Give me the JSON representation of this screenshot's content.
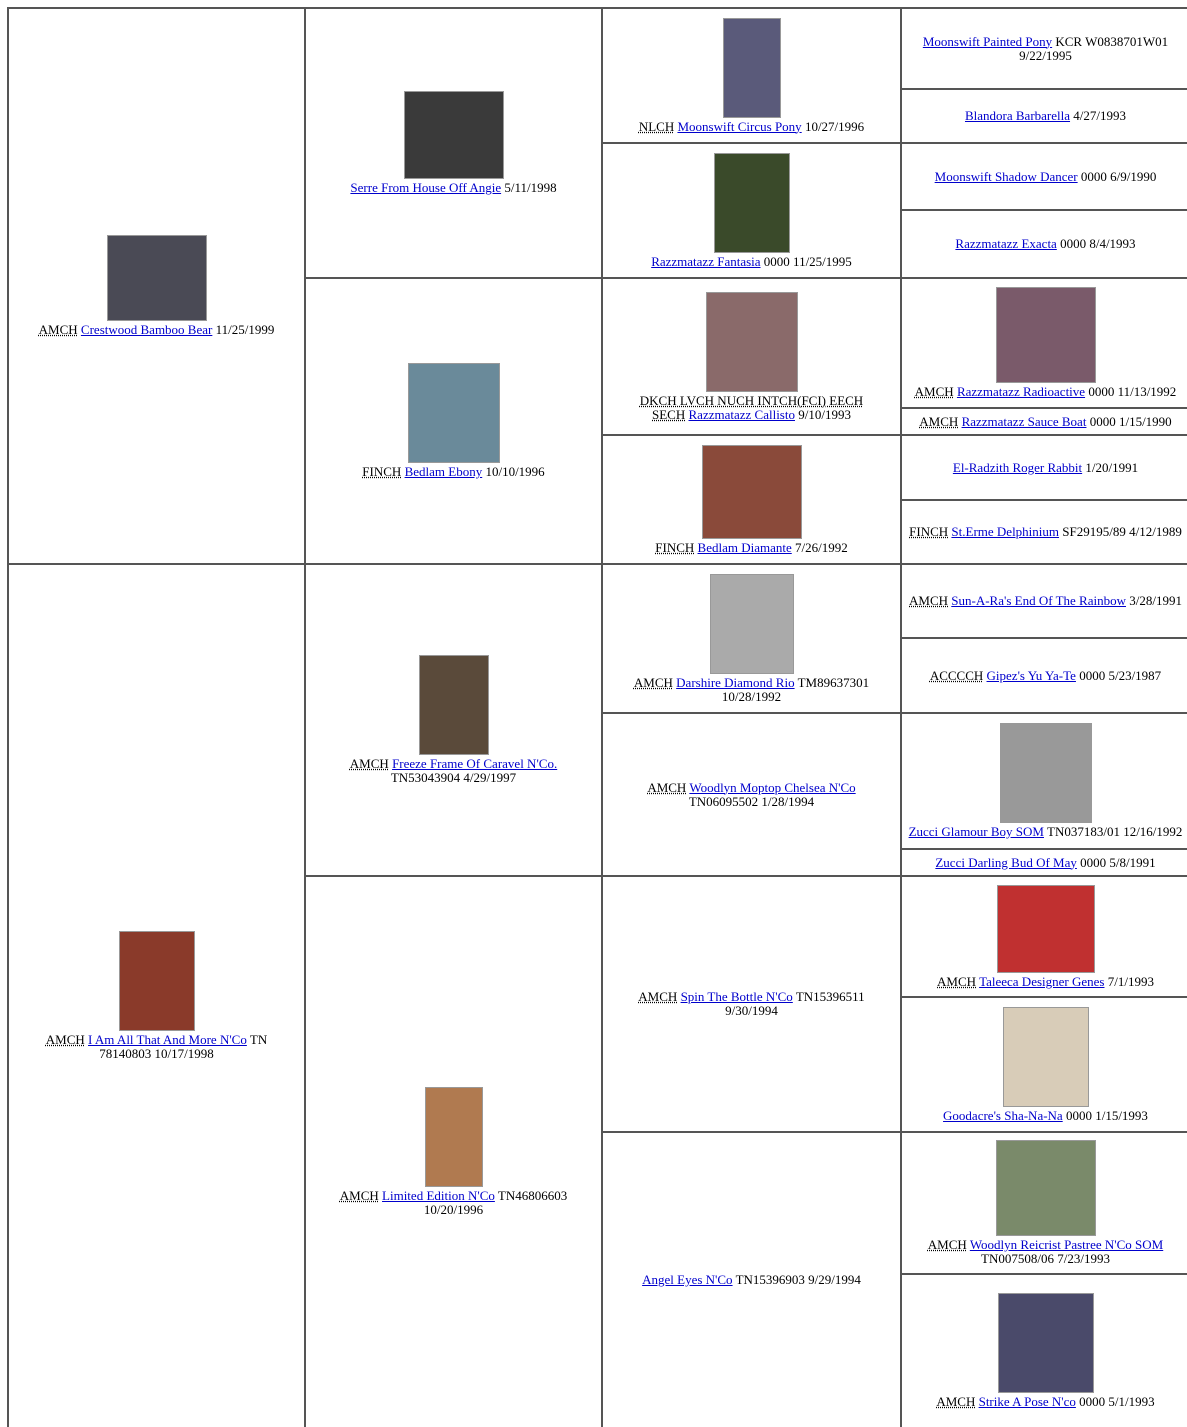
{
  "pedigree": {
    "generations": [
      [
        {
          "title": "AMCH",
          "name": "Crestwood Bamboo Bear",
          "info": "11/25/1999"
        },
        {
          "title": "AMCH",
          "name": "I Am All That And More N'Co",
          "info": "TN 78140803 10/17/1998"
        }
      ],
      [
        {
          "name": "Serre From House Off Angie",
          "info": "5/11/1998"
        },
        {
          "title": "FINCH",
          "name": "Bedlam Ebony",
          "info": "10/10/1996"
        },
        {
          "title": "AMCH",
          "name": "Freeze Frame Of Caravel N'Co.",
          "info": "TN53043904 4/29/1997"
        },
        {
          "title": "AMCH",
          "name": "Limited Edition N'Co",
          "info": "TN46806603 10/20/1996"
        }
      ],
      [
        {
          "title": "NLCH",
          "name": "Moonswift Circus Pony",
          "info": "10/27/1996"
        },
        {
          "name": "Razzmatazz Fantasia",
          "info": "0000 11/25/1995"
        },
        {
          "title": "DKCH LVCH NUCH INTCH(FCI) EECH SECH",
          "name": "Razzmatazz Callisto",
          "info": "9/10/1993"
        },
        {
          "title": "FINCH",
          "name": "Bedlam Diamante",
          "info": "7/26/1992"
        },
        {
          "title": "AMCH",
          "name": "Darshire Diamond Rio",
          "info": "TM89637301 10/28/1992"
        },
        {
          "title": "AMCH",
          "name": "Woodlyn Moptop Chelsea N'Co",
          "info": "TN06095502 1/28/1994"
        },
        {
          "title": "AMCH",
          "name": "Spin The Bottle N'Co",
          "info": "TN15396511 9/30/1994"
        },
        {
          "name": "Angel Eyes N'Co",
          "info": "TN15396903 9/29/1994"
        }
      ],
      [
        {
          "name": "Moonswift Painted Pony",
          "info": "KCR W0838701W01 9/22/1995"
        },
        {
          "name": "Blandora Barbarella",
          "info": "4/27/1993"
        },
        {
          "name": "Moonswift Shadow Dancer",
          "info": "0000 6/9/1990"
        },
        {
          "name": "Razzmatazz Exacta",
          "info": "0000 8/4/1993"
        },
        {
          "title": "AMCH",
          "name": "Razzmatazz Radioactive",
          "info": "0000 11/13/1992"
        },
        {
          "title": "AMCH",
          "name": "Razzmatazz Sauce Boat",
          "info": "0000 1/15/1990"
        },
        {
          "name": "El-Radzith Roger Rabbit",
          "info": "1/20/1991"
        },
        {
          "title": "FINCH",
          "name": "St.Erme Delphinium",
          "info": "SF29195/89 4/12/1989"
        },
        {
          "title": "AMCH",
          "name": "Sun-A-Ra's End Of The Rainbow",
          "info": "3/28/1991"
        },
        {
          "title": "ACCCCH",
          "name": "Gipez's Yu Ya-Te",
          "info": "0000 5/23/1987"
        },
        {
          "name": "Zucci Glamour Boy SOM",
          "info": "TN037183/01 12/16/1992"
        },
        {
          "name": "Zucci Darling Bud Of May",
          "info": "0000 5/8/1991"
        },
        {
          "title": "AMCH",
          "name": "Taleeca Designer Genes",
          "info": "7/1/1993"
        },
        {
          "name": "Goodacre's Sha-Na-Na",
          "info": "0000 1/15/1993"
        },
        {
          "title": "AMCH",
          "name": "Woodlyn Reicrist Pastree N'Co SOM",
          "info": "TN007508/06 7/23/1993"
        },
        {
          "title": "AMCH",
          "name": "Strike A Pose N'co",
          "info": "0000 5/1/1993"
        }
      ]
    ]
  }
}
